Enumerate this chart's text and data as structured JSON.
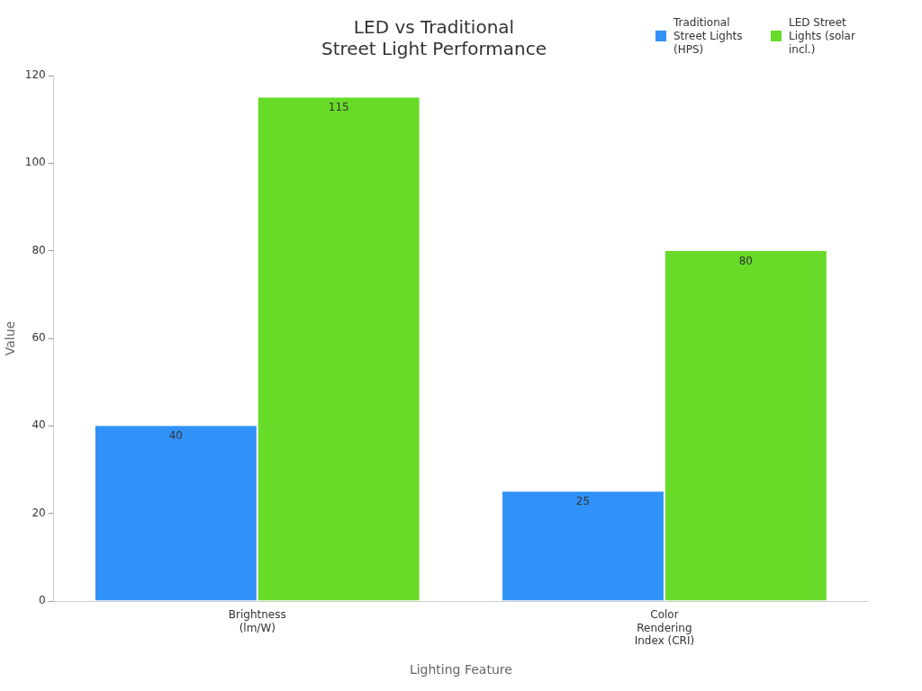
{
  "chart_data": {
    "type": "bar",
    "title": "LED vs Traditional Street Light Performance",
    "xlabel": "Lighting Feature",
    "ylabel": "Value",
    "categories": [
      "Brightness (lm/W)",
      "Color Rendering Index (CRI)"
    ],
    "series": [
      {
        "name": "Traditional Street Lights (HPS)",
        "color": "#3092f8",
        "values": [
          40,
          25
        ]
      },
      {
        "name": "LED Street Lights (solar incl.)",
        "color": "#67db28",
        "values": [
          115,
          80
        ]
      }
    ],
    "ylim": [
      0,
      120
    ],
    "yticks": [
      0,
      20,
      40,
      60,
      80,
      100,
      120
    ],
    "grid": false,
    "legend": "top right",
    "data_labels": true
  }
}
